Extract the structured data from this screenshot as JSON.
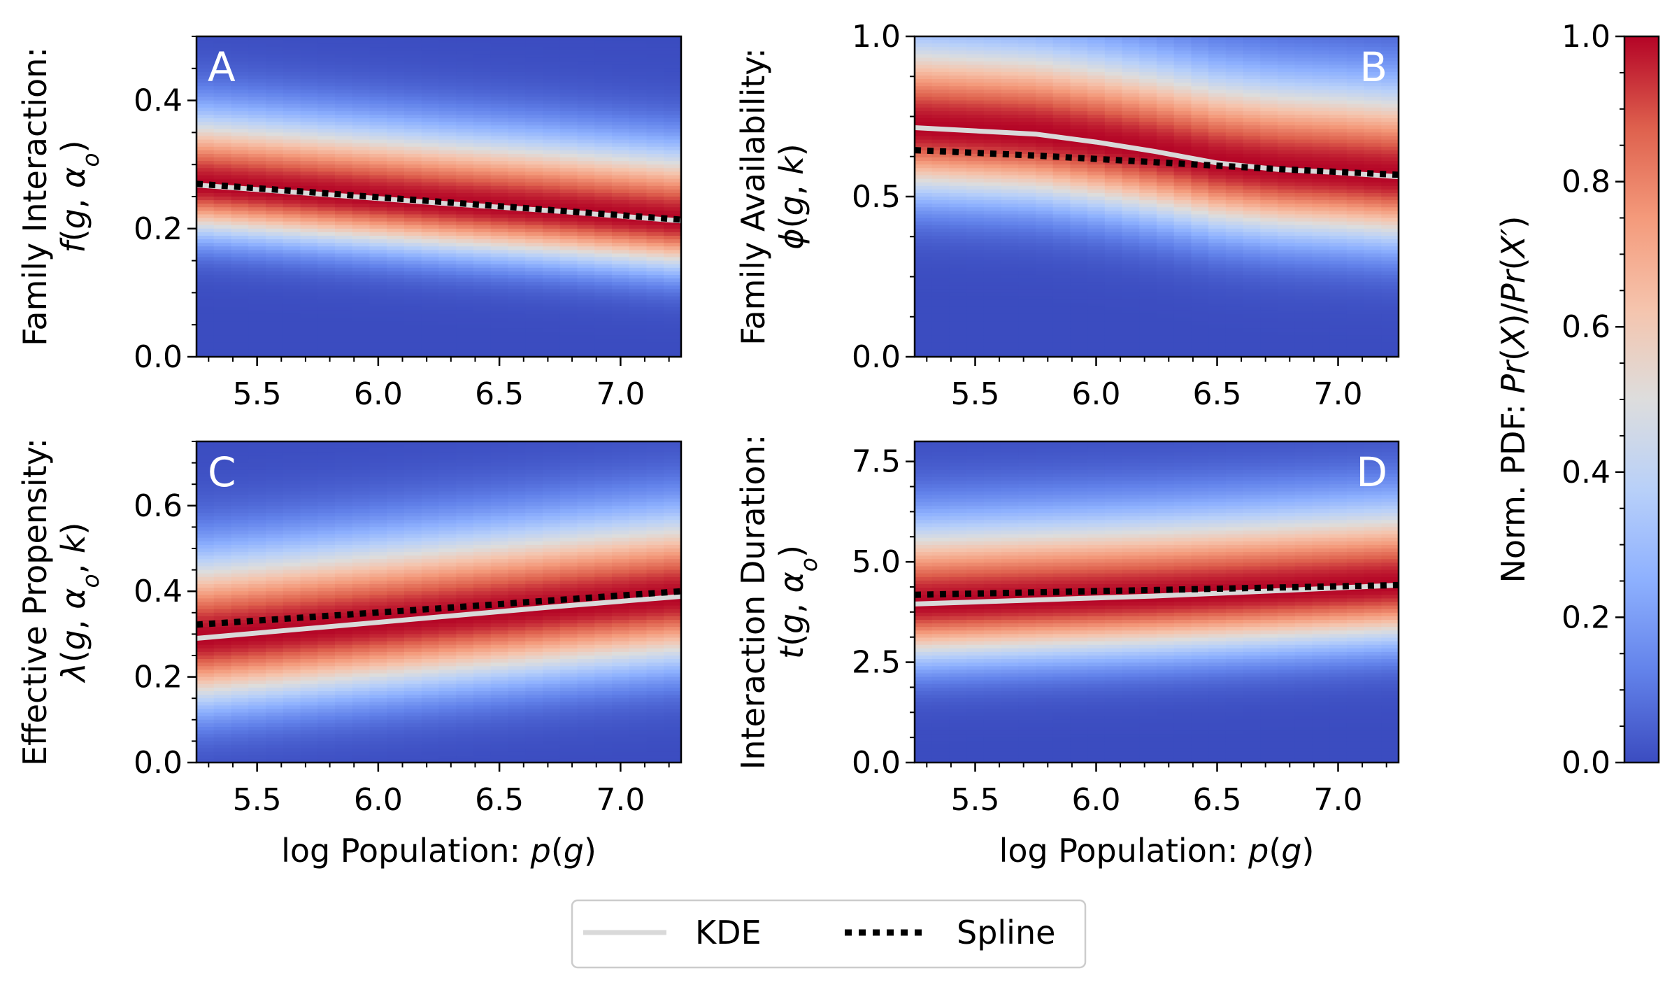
{
  "figure": {
    "background": "#ffffff",
    "colormap": "coolwarm"
  },
  "chart_data": [
    {
      "id": "A",
      "type": "heatmap",
      "panel_label": "A",
      "ylabel_line1": "Family Interaction:",
      "ylabel_line2_parts": [
        {
          "t": "f",
          "i": true
        },
        {
          "t": "(",
          "i": false
        },
        {
          "t": "g",
          "i": true
        },
        {
          "t": ", ",
          "i": false
        },
        {
          "t": "α",
          "i": true
        },
        {
          "t": "o",
          "i": true,
          "sub": true
        },
        {
          "t": ")",
          "i": false
        }
      ],
      "xlabel": "",
      "xlim": [
        5.25,
        7.25
      ],
      "ylim": [
        0.0,
        0.5
      ],
      "xticks": [
        5.5,
        6.0,
        6.5,
        7.0
      ],
      "xtick_labels": [
        "5.5",
        "6.0",
        "6.5",
        "7.0"
      ],
      "yticks": [
        0.0,
        0.2,
        0.4
      ],
      "ytick_labels": [
        "0.0",
        "0.2",
        "0.4"
      ],
      "label_position": "top-left",
      "kde": {
        "x": [
          5.25,
          5.75,
          6.25,
          6.75,
          7.25
        ],
        "y": [
          0.268,
          0.254,
          0.24,
          0.227,
          0.212
        ]
      },
      "spline": {
        "x": [
          5.25,
          5.75,
          6.25,
          6.75,
          7.25
        ],
        "y": [
          0.27,
          0.256,
          0.242,
          0.228,
          0.214
        ]
      },
      "density": {
        "sigma_low": 0.052,
        "sigma_high": 0.075
      }
    },
    {
      "id": "B",
      "type": "heatmap",
      "panel_label": "B",
      "ylabel_line1": "Family Availability:",
      "ylabel_line2_parts": [
        {
          "t": "ϕ",
          "i": true
        },
        {
          "t": "(",
          "i": false
        },
        {
          "t": "g",
          "i": true
        },
        {
          "t": ", ",
          "i": false
        },
        {
          "t": "k",
          "i": true
        },
        {
          "t": ")",
          "i": false
        }
      ],
      "xlabel": "",
      "xlim": [
        5.25,
        7.25
      ],
      "ylim": [
        0.0,
        1.0
      ],
      "xticks": [
        5.5,
        6.0,
        6.5,
        7.0
      ],
      "xtick_labels": [
        "5.5",
        "6.0",
        "6.5",
        "7.0"
      ],
      "yticks": [
        0.0,
        0.5,
        1.0
      ],
      "ytick_labels": [
        "0.0",
        "0.5",
        "1.0"
      ],
      "label_position": "top-right",
      "kde": {
        "x": [
          5.25,
          5.75,
          6.0,
          6.25,
          6.5,
          6.75,
          7.0,
          7.25
        ],
        "y": [
          0.715,
          0.695,
          0.67,
          0.64,
          0.605,
          0.585,
          0.575,
          0.562
        ]
      },
      "spline": {
        "x": [
          5.25,
          5.75,
          6.25,
          6.75,
          7.25
        ],
        "y": [
          0.645,
          0.628,
          0.607,
          0.586,
          0.568
        ]
      },
      "density": {
        "sigma_low": 0.14,
        "sigma_high": 0.19
      }
    },
    {
      "id": "C",
      "type": "heatmap",
      "panel_label": "C",
      "ylabel_line1": "Effective Propensity:",
      "ylabel_line2_parts": [
        {
          "t": "λ",
          "i": true
        },
        {
          "t": "(",
          "i": false
        },
        {
          "t": "g",
          "i": true
        },
        {
          "t": ", ",
          "i": false
        },
        {
          "t": "α",
          "i": true
        },
        {
          "t": "o",
          "i": true,
          "sub": true
        },
        {
          "t": ", ",
          "i": false
        },
        {
          "t": "k",
          "i": true
        },
        {
          "t": ")",
          "i": false
        }
      ],
      "xlabel": "log Population: ",
      "xlabel_var": "p",
      "xlabel_arg": "g",
      "xlim": [
        5.25,
        7.25
      ],
      "ylim": [
        0.0,
        0.75
      ],
      "xticks": [
        5.5,
        6.0,
        6.5,
        7.0
      ],
      "xtick_labels": [
        "5.5",
        "6.0",
        "6.5",
        "7.0"
      ],
      "yticks": [
        0.0,
        0.2,
        0.4,
        0.6
      ],
      "ytick_labels": [
        "0.0",
        "0.2",
        "0.4",
        "0.6"
      ],
      "label_position": "top-left",
      "kde": {
        "x": [
          5.25,
          5.75,
          6.25,
          6.75,
          7.25
        ],
        "y": [
          0.29,
          0.315,
          0.34,
          0.365,
          0.388
        ]
      },
      "spline": {
        "x": [
          5.25,
          5.75,
          6.25,
          6.75,
          7.25
        ],
        "y": [
          0.322,
          0.341,
          0.36,
          0.38,
          0.4
        ]
      },
      "density": {
        "sigma_low": 0.105,
        "sigma_high": 0.13
      }
    },
    {
      "id": "D",
      "type": "heatmap",
      "panel_label": "D",
      "ylabel_line1": "Interaction Duration:",
      "ylabel_line2_parts": [
        {
          "t": "t",
          "i": true
        },
        {
          "t": "(",
          "i": false
        },
        {
          "t": "g",
          "i": true
        },
        {
          "t": ", ",
          "i": false
        },
        {
          "t": "α",
          "i": true
        },
        {
          "t": "o",
          "i": true,
          "sub": true
        },
        {
          "t": ")",
          "i": false
        }
      ],
      "xlabel": "log Population: ",
      "xlabel_var": "p",
      "xlabel_arg": "g",
      "xlim": [
        5.25,
        7.25
      ],
      "ylim": [
        0.0,
        8.0
      ],
      "xticks": [
        5.5,
        6.0,
        6.5,
        7.0
      ],
      "xtick_labels": [
        "5.5",
        "6.0",
        "6.5",
        "7.0"
      ],
      "yticks": [
        0.0,
        2.5,
        5.0,
        7.5
      ],
      "ytick_labels": [
        "0.0",
        "2.5",
        "5.0",
        "7.5"
      ],
      "label_position": "top-right",
      "kde": {
        "x": [
          5.25,
          5.75,
          6.25,
          6.75,
          7.25
        ],
        "y": [
          3.95,
          4.05,
          4.15,
          4.28,
          4.42
        ]
      },
      "spline": {
        "x": [
          5.25,
          5.75,
          6.25,
          6.75,
          7.25
        ],
        "y": [
          4.18,
          4.24,
          4.3,
          4.36,
          4.42
        ]
      },
      "density": {
        "sigma_low": 0.95,
        "sigma_high": 1.35
      }
    }
  ],
  "colorbar": {
    "label_prefix": "Norm. PDF: ",
    "label_parts": [
      {
        "t": "Pr",
        "i": true
      },
      {
        "t": "(",
        "i": false
      },
      {
        "t": "X",
        "i": true
      },
      {
        "t": ")/",
        "i": false
      },
      {
        "t": "Pr",
        "i": true
      },
      {
        "t": "(",
        "i": false
      },
      {
        "t": "X′",
        "i": true
      },
      {
        "t": ")",
        "i": false
      }
    ],
    "range": [
      0.0,
      1.0
    ],
    "ticks": [
      0.0,
      0.2,
      0.4,
      0.6,
      0.8,
      1.0
    ],
    "tick_labels": [
      "0.0",
      "0.2",
      "0.4",
      "0.6",
      "0.8",
      "1.0"
    ]
  },
  "legend": {
    "placement": "bottom-center",
    "entries": [
      {
        "label": "KDE",
        "style": "solid",
        "color": "#d9d9d9"
      },
      {
        "label": "Spline",
        "style": "dotted",
        "color": "#000000"
      }
    ]
  }
}
